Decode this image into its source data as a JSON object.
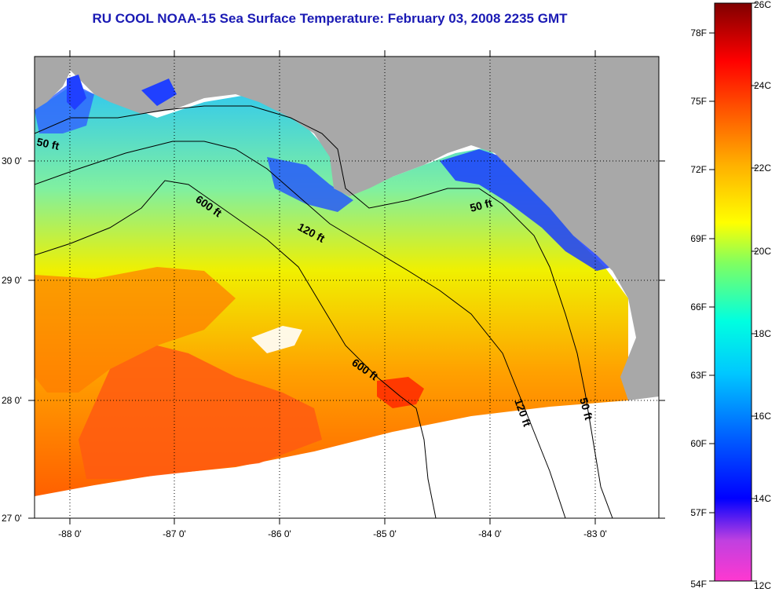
{
  "title": "RU COOL  NOAA-15  Sea Surface Temperature:  February 03, 2008 2235 GMT",
  "map": {
    "lon_ticks": [
      "-88 0'",
      "-87 0'",
      "-86 0'",
      "-85 0'",
      "-84 0'",
      "-83 0'"
    ],
    "lat_ticks": [
      "30 0'",
      "29 0'",
      "28 0'",
      "27 0'"
    ],
    "contour_labels": [
      {
        "id": "50ft-west",
        "text": "50 ft"
      },
      {
        "id": "600ft-north",
        "text": "600 ft"
      },
      {
        "id": "120ft-mid",
        "text": "120 ft"
      },
      {
        "id": "50ft-east",
        "text": "50 ft"
      },
      {
        "id": "600ft-south",
        "text": "600 ft"
      },
      {
        "id": "120ft-south",
        "text": "120 ft"
      },
      {
        "id": "50ft-south",
        "text": "50 ft"
      }
    ],
    "colors": {
      "land": "#a8a8a8",
      "no_data": "#ffffff",
      "title": "#1a1ab4"
    }
  },
  "colorbar": {
    "fahrenheit_labels": [
      "78F",
      "75F",
      "72F",
      "69F",
      "66F",
      "63F",
      "60F",
      "57F",
      "54F"
    ],
    "celsius_labels": [
      "26C",
      "24C",
      "22C",
      "20C",
      "18C",
      "16C",
      "14C",
      "12C"
    ],
    "range_c": [
      12,
      26
    ],
    "colors": [
      "#ff38d0",
      "#8a2be2",
      "#0000ff",
      "#0096ff",
      "#00ffff",
      "#80ff80",
      "#ffff00",
      "#ffa000",
      "#ff4000",
      "#ff0000",
      "#800000"
    ]
  }
}
